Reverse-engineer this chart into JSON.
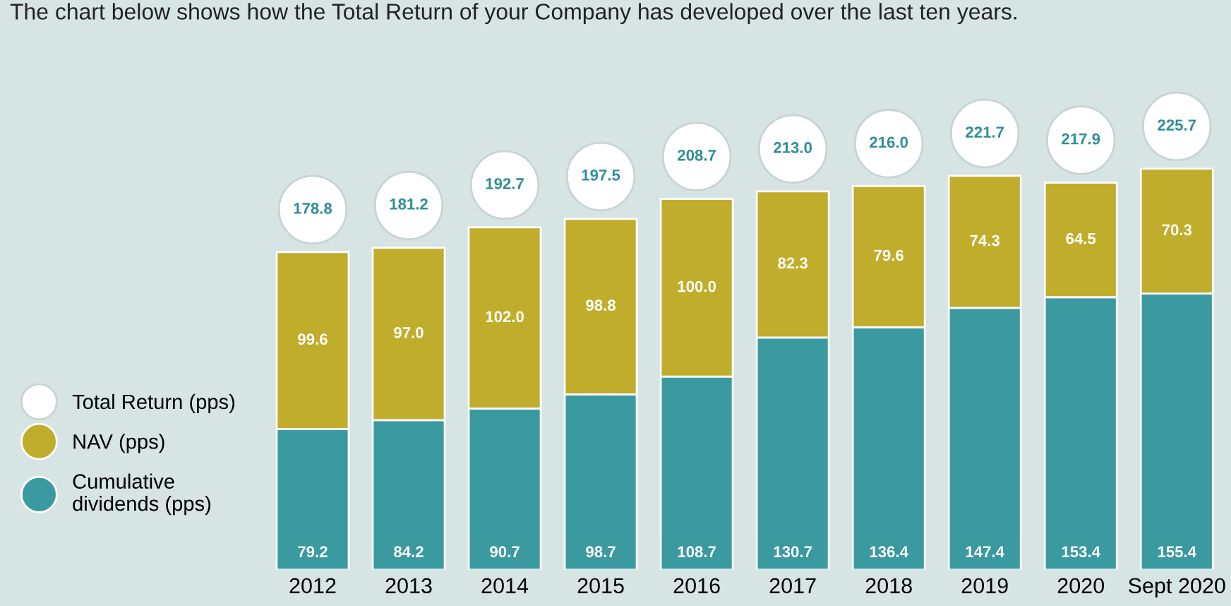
{
  "chart_data": {
    "type": "bar",
    "title": "The chart below shows how the Total Return of your Company has developed over the last ten years.",
    "categories": [
      "2012",
      "2013",
      "2014",
      "2015",
      "2016",
      "2017",
      "2018",
      "2019",
      "2020",
      "Sept 2020"
    ],
    "stacked": true,
    "legend": "left",
    "grid": false,
    "series": [
      {
        "name": "Cumulative\ndividends (pps)",
        "color": "#3a9aa0",
        "values": [
          79.2,
          84.2,
          90.7,
          98.7,
          108.7,
          130.7,
          136.4,
          147.4,
          153.4,
          155.4
        ],
        "value_labels": [
          "79.2",
          "84.2",
          "90.7",
          "98.7",
          "108.7",
          "130.7",
          "136.4",
          "147.4",
          "153.4",
          "155.4"
        ]
      },
      {
        "name": "NAV (pps)",
        "color": "#c0ad2c",
        "values": [
          99.6,
          97.0,
          102.0,
          98.8,
          100.0,
          82.3,
          79.6,
          74.3,
          64.5,
          70.3
        ],
        "value_labels": [
          "99.6",
          "97.0",
          "102.0",
          "98.8",
          "100.0",
          "82.3",
          "79.6",
          "74.3",
          "64.5",
          "70.3"
        ]
      }
    ],
    "totals": [
      "178.8",
      "181.2",
      "192.7",
      "197.5",
      "208.7",
      "213.0",
      "216.0",
      "221.7",
      "217.9",
      "225.7"
    ],
    "annotations": [
      "Total Return (pps)"
    ]
  }
}
